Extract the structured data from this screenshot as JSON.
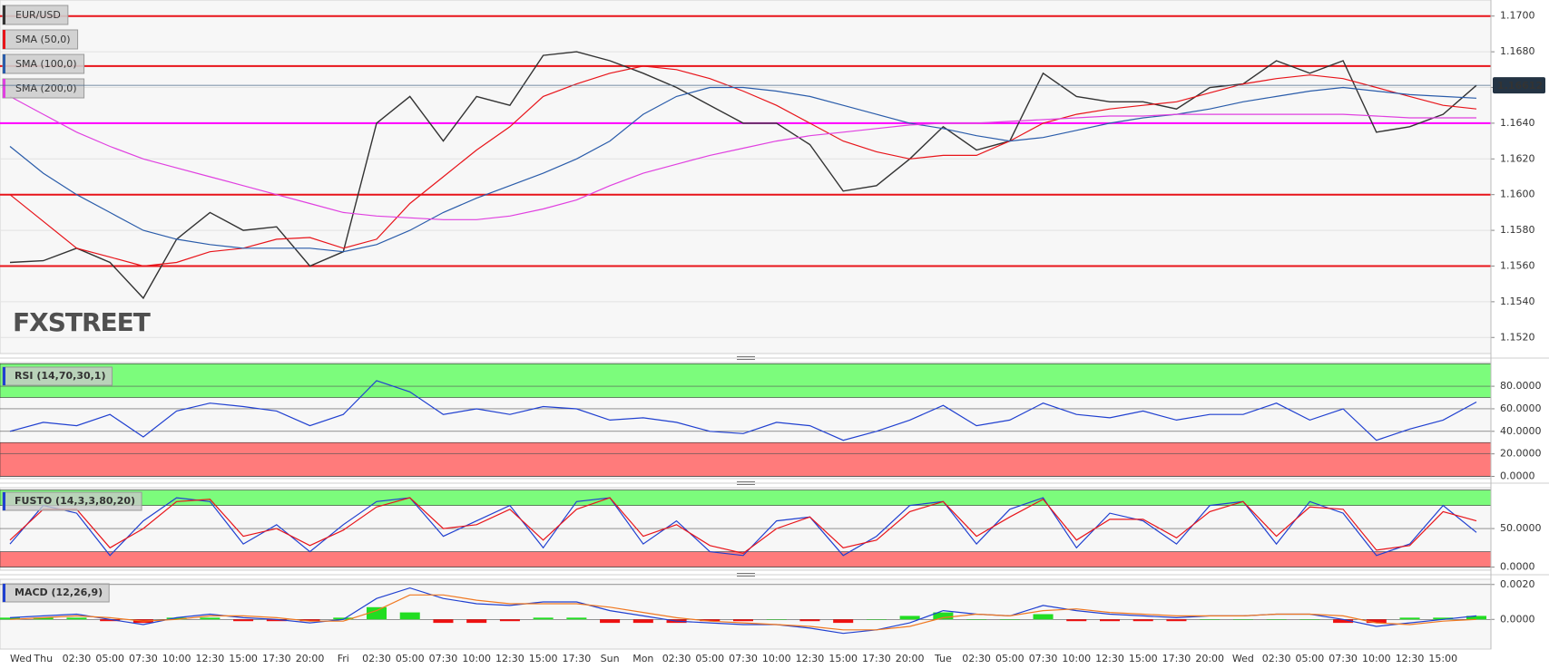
{
  "chart_data": [
    {
      "type": "line",
      "watermark": "FXSTREET",
      "ylim": [
        1.1511,
        1.1709
      ],
      "yticks": [
        {
          "value": 1.152,
          "label": "1.1520"
        },
        {
          "value": 1.154,
          "label": "1.1540"
        },
        {
          "value": 1.156,
          "label": "1.1560"
        },
        {
          "value": 1.158,
          "label": "1.1580"
        },
        {
          "value": 1.16,
          "label": "1.1600"
        },
        {
          "value": 1.162,
          "label": "1.1620"
        },
        {
          "value": 1.164,
          "label": "1.1640"
        },
        {
          "value": 1.166,
          "label": "1.1660"
        },
        {
          "value": 1.168,
          "label": "1.1680"
        },
        {
          "value": 1.17,
          "label": "1.1700"
        }
      ],
      "levels": [
        {
          "value": 1.17,
          "color": "#e8141a"
        },
        {
          "value": 1.1672,
          "color": "#e8141a"
        },
        {
          "value": 1.164,
          "color": "#ff00ff"
        },
        {
          "value": 1.16,
          "color": "#e8141a"
        },
        {
          "value": 1.156,
          "color": "#e8141a"
        }
      ],
      "series": [
        {
          "name": "EUR/USD",
          "color": "#333333",
          "values": [
            1.1562,
            1.1563,
            1.157,
            1.1562,
            1.1542,
            1.1575,
            1.159,
            1.158,
            1.1582,
            1.156,
            1.1568,
            1.164,
            1.1655,
            1.163,
            1.1655,
            1.165,
            1.1678,
            1.168,
            1.1675,
            1.1668,
            1.166,
            1.165,
            1.164,
            1.164,
            1.1628,
            1.1602,
            1.1605,
            1.162,
            1.1638,
            1.1625,
            1.163,
            1.1668,
            1.1655,
            1.1652,
            1.1652,
            1.1648,
            1.166,
            1.1662,
            1.1675,
            1.1668,
            1.1675,
            1.1635,
            1.1638,
            1.1645,
            1.16612
          ]
        },
        {
          "name": "SMA (50,0)",
          "color": "#e8141a",
          "values": [
            1.16,
            1.1585,
            1.157,
            1.1565,
            1.156,
            1.1562,
            1.1568,
            1.157,
            1.1575,
            1.1576,
            1.157,
            1.1575,
            1.1595,
            1.161,
            1.1625,
            1.1638,
            1.1655,
            1.1662,
            1.1668,
            1.1672,
            1.167,
            1.1665,
            1.1658,
            1.165,
            1.164,
            1.163,
            1.1624,
            1.162,
            1.1622,
            1.1622,
            1.163,
            1.164,
            1.1645,
            1.1648,
            1.165,
            1.1652,
            1.1657,
            1.1662,
            1.1665,
            1.1667,
            1.1665,
            1.166,
            1.1655,
            1.165,
            1.1648
          ]
        },
        {
          "name": "SMA (100,0)",
          "color": "#2a5caa",
          "values": [
            1.1627,
            1.1612,
            1.16,
            1.159,
            1.158,
            1.1575,
            1.1572,
            1.157,
            1.157,
            1.157,
            1.1568,
            1.1572,
            1.158,
            1.159,
            1.1598,
            1.1605,
            1.1612,
            1.162,
            1.163,
            1.1645,
            1.1655,
            1.166,
            1.166,
            1.1658,
            1.1655,
            1.165,
            1.1645,
            1.164,
            1.1637,
            1.1633,
            1.163,
            1.1632,
            1.1636,
            1.164,
            1.1643,
            1.1645,
            1.1648,
            1.1652,
            1.1655,
            1.1658,
            1.166,
            1.1658,
            1.1656,
            1.1655,
            1.1654
          ]
        },
        {
          "name": "SMA (200,0)",
          "color": "#e040e0",
          "values": [
            1.1655,
            1.1645,
            1.1635,
            1.1627,
            1.162,
            1.1615,
            1.161,
            1.1605,
            1.16,
            1.1595,
            1.159,
            1.1588,
            1.1587,
            1.1586,
            1.1586,
            1.1588,
            1.1592,
            1.1597,
            1.1605,
            1.1612,
            1.1617,
            1.1622,
            1.1626,
            1.163,
            1.1633,
            1.1635,
            1.1637,
            1.1639,
            1.164,
            1.164,
            1.1641,
            1.1642,
            1.1643,
            1.1644,
            1.1644,
            1.1645,
            1.1645,
            1.1645,
            1.1645,
            1.1645,
            1.1645,
            1.1644,
            1.1643,
            1.1643,
            1.1643
          ]
        }
      ]
    },
    {
      "type": "line",
      "title": "RSI (14,70,30,1)",
      "ylim": [
        -2,
        101
      ],
      "yticks": [
        {
          "value": 0,
          "label": "0.0000"
        },
        {
          "value": 20,
          "label": "20.0000"
        },
        {
          "value": 40,
          "label": "40.0000"
        },
        {
          "value": 60,
          "label": "60.0000"
        },
        {
          "value": 80,
          "label": "80.0000"
        }
      ],
      "bands": [
        {
          "range": [
            70,
            100
          ],
          "color": "#7cfc7c"
        },
        {
          "range": [
            0,
            30
          ],
          "color": "#ff7b7b"
        }
      ],
      "series": [
        {
          "color": "#2040d0",
          "values": [
            40,
            48,
            45,
            55,
            35,
            58,
            65,
            62,
            58,
            45,
            55,
            85,
            75,
            55,
            60,
            55,
            62,
            60,
            50,
            52,
            48,
            40,
            38,
            48,
            45,
            32,
            40,
            50,
            63,
            45,
            50,
            65,
            55,
            52,
            58,
            50,
            55,
            55,
            65,
            50,
            60,
            32,
            42,
            50,
            66
          ]
        }
      ]
    },
    {
      "type": "line",
      "title": "FUSTO (14,3,3,80,20)",
      "ylim": [
        -4,
        103
      ],
      "yticks": [
        {
          "value": 0,
          "label": "0.0000"
        },
        {
          "value": 50,
          "label": "50.0000"
        }
      ],
      "bands": [
        {
          "range": [
            80,
            100
          ],
          "color": "#7cfc7c"
        },
        {
          "range": [
            0,
            20
          ],
          "color": "#ff7b7b"
        }
      ],
      "series": [
        {
          "color": "#2040d0",
          "values": [
            30,
            80,
            70,
            15,
            60,
            90,
            85,
            30,
            55,
            20,
            55,
            85,
            90,
            40,
            60,
            80,
            25,
            85,
            90,
            30,
            60,
            20,
            15,
            60,
            65,
            15,
            40,
            80,
            85,
            30,
            75,
            90,
            25,
            70,
            60,
            30,
            80,
            85,
            30,
            85,
            70,
            15,
            30,
            80,
            45
          ]
        },
        {
          "color": "#e8141a",
          "values": [
            35,
            75,
            75,
            25,
            50,
            85,
            88,
            40,
            50,
            28,
            48,
            78,
            90,
            50,
            55,
            75,
            35,
            75,
            90,
            40,
            55,
            28,
            18,
            50,
            65,
            25,
            35,
            72,
            85,
            40,
            65,
            88,
            35,
            62,
            62,
            38,
            72,
            85,
            40,
            78,
            75,
            22,
            28,
            72,
            60
          ]
        }
      ]
    },
    {
      "type": "line",
      "title": "MACD (12,26,9)",
      "ylim": [
        -0.0017,
        0.0023
      ],
      "yticks": [
        {
          "value": 0,
          "label": "0.0000"
        },
        {
          "value": 0.002,
          "label": "0.0020"
        }
      ],
      "categories": [
        "Wed",
        "Thu",
        "02:30",
        "05:00",
        "07:30",
        "10:00",
        "12:30",
        "15:00",
        "17:30",
        "20:00",
        "Fri",
        "02:30",
        "05:00",
        "07:30",
        "10:00",
        "12:30",
        "15:00",
        "17:30",
        "Sun",
        "Mon",
        "02:30",
        "05:00",
        "07:30",
        "10:00",
        "12:30",
        "15:00",
        "17:30",
        "20:00",
        "Tue",
        "02:30",
        "05:00",
        "07:30",
        "10:00",
        "12:30",
        "15:00",
        "17:30",
        "20:00",
        "Wed",
        "02:30",
        "05:00",
        "07:30",
        "10:00",
        "12:30",
        "15:00",
        null
      ],
      "series": [
        {
          "type": "bar",
          "positive_color": "#22dd22",
          "negative_color": "#ee1111",
          "values": [
            0.0001,
            0.0001,
            0.0001,
            -0.0001,
            -0.0002,
            0.0001,
            0.0001,
            -0.0001,
            -0.0001,
            -0.0001,
            0.0001,
            0.0007,
            0.0004,
            -0.0002,
            -0.0002,
            -0.0001,
            0.0001,
            0.0001,
            -0.0002,
            -0.0002,
            -0.0002,
            -0.0001,
            -0.0001,
            0,
            -0.0001,
            -0.0002,
            0,
            0.0002,
            0.0004,
            0,
            0,
            0.0003,
            -0.0001,
            -0.0001,
            -0.0001,
            -0.0001,
            0,
            0,
            0,
            0,
            -0.0002,
            -0.0002,
            0.0001,
            0.0001,
            0.0002
          ]
        },
        {
          "color": "#2040d0",
          "values": [
            0.0001,
            0.0002,
            0.0003,
            0,
            -0.0003,
            0.0001,
            0.0003,
            0.0001,
            0,
            -0.0002,
            0,
            0.0012,
            0.0018,
            0.0012,
            0.0009,
            0.0008,
            0.001,
            0.001,
            0.0005,
            0.0002,
            -0.0001,
            -0.0002,
            -0.0003,
            -0.0003,
            -0.0005,
            -0.0008,
            -0.0006,
            -0.0002,
            0.0005,
            0.0003,
            0.0002,
            0.0008,
            0.0005,
            0.0003,
            0.0002,
            0.0001,
            0.0002,
            0.0002,
            0.0003,
            0.0003,
            0,
            -0.0004,
            -0.0002,
            0,
            0.0002
          ]
        },
        {
          "color": "#f07820",
          "values": [
            0,
            0.0001,
            0.0002,
            0.0001,
            -0.0001,
            0,
            0.0002,
            0.0002,
            0.0001,
            -0.0001,
            -0.0001,
            0.0005,
            0.0014,
            0.0014,
            0.0011,
            0.0009,
            0.0009,
            0.0009,
            0.0007,
            0.0004,
            0.0001,
            -0.0001,
            -0.0002,
            -0.0003,
            -0.0004,
            -0.0006,
            -0.0006,
            -0.0004,
            0.0001,
            0.0003,
            0.0002,
            0.0005,
            0.0006,
            0.0004,
            0.0003,
            0.0002,
            0.0002,
            0.0002,
            0.0003,
            0.0003,
            0.0002,
            -0.0002,
            -0.0003,
            -0.0001,
            0
          ]
        }
      ]
    }
  ]
}
